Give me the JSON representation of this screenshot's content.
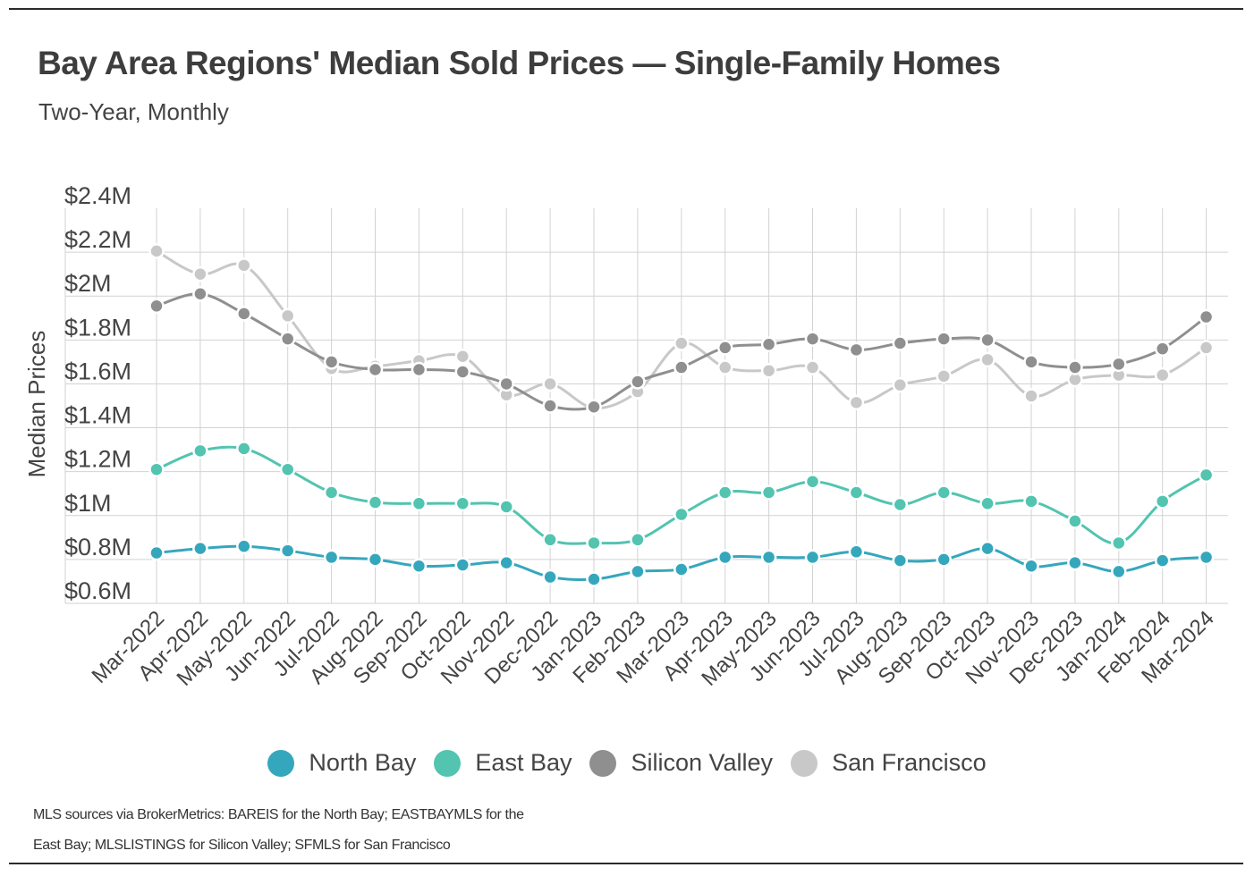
{
  "title": "Bay Area Regions' Median Sold Prices — Single-Family Homes",
  "subtitle": "Two-Year, Monthly",
  "source_note": "MLS sources via BrokerMetrics: BAREIS for the North Bay; EASTBAYMLS for the East Bay; MLSLISTINGS for Silicon Valley; SFMLS for San Francisco",
  "chart_data": {
    "type": "line",
    "title": "Bay Area Regions' Median Sold Prices — Single-Family Homes",
    "subtitle": "Two-Year, Monthly",
    "xlabel": "",
    "ylabel": "Median Prices",
    "ylim": [
      600000,
      2400000
    ],
    "y_ticks": [
      {
        "value": 600000,
        "label": "$0.6M"
      },
      {
        "value": 800000,
        "label": "$0.8M"
      },
      {
        "value": 1000000,
        "label": "$1M"
      },
      {
        "value": 1200000,
        "label": "$1.2M"
      },
      {
        "value": 1400000,
        "label": "$1.4M"
      },
      {
        "value": 1600000,
        "label": "$1.6M"
      },
      {
        "value": 1800000,
        "label": "$1.8M"
      },
      {
        "value": 2000000,
        "label": "$2M"
      },
      {
        "value": 2200000,
        "label": "$2.2M"
      },
      {
        "value": 2400000,
        "label": "$2.4M"
      }
    ],
    "grid": true,
    "legend_position": "bottom-center",
    "categories": [
      "Mar-2022",
      "Apr-2022",
      "May-2022",
      "Jun-2022",
      "Jul-2022",
      "Aug-2022",
      "Sep-2022",
      "Oct-2022",
      "Nov-2022",
      "Dec-2022",
      "Jan-2023",
      "Feb-2023",
      "Mar-2023",
      "Apr-2023",
      "May-2023",
      "Jun-2023",
      "Jul-2023",
      "Aug-2023",
      "Sep-2023",
      "Oct-2023",
      "Nov-2023",
      "Dec-2023",
      "Jan-2024",
      "Feb-2024",
      "Mar-2024"
    ],
    "series": [
      {
        "name": "North Bay",
        "color": "#35a7bd",
        "values": [
          830000,
          850000,
          860000,
          840000,
          810000,
          800000,
          770000,
          775000,
          785000,
          720000,
          710000,
          745000,
          755000,
          810000,
          810000,
          810000,
          835000,
          795000,
          800000,
          850000,
          770000,
          785000,
          745000,
          795000,
          810000
        ]
      },
      {
        "name": "East Bay",
        "color": "#52c4b0",
        "values": [
          1210000,
          1295000,
          1305000,
          1210000,
          1105000,
          1060000,
          1055000,
          1055000,
          1040000,
          890000,
          875000,
          890000,
          1005000,
          1105000,
          1105000,
          1155000,
          1105000,
          1050000,
          1105000,
          1055000,
          1065000,
          975000,
          875000,
          1065000,
          1185000
        ]
      },
      {
        "name": "Silicon Valley",
        "color": "#8f8f8f",
        "values": [
          1955000,
          2010000,
          1920000,
          1805000,
          1700000,
          1665000,
          1665000,
          1655000,
          1600000,
          1500000,
          1495000,
          1610000,
          1675000,
          1765000,
          1780000,
          1805000,
          1755000,
          1785000,
          1805000,
          1800000,
          1700000,
          1675000,
          1690000,
          1760000,
          1905000
        ]
      },
      {
        "name": "San Francisco",
        "color": "#c8c8c8",
        "values": [
          2205000,
          2100000,
          2140000,
          1910000,
          1670000,
          1680000,
          1705000,
          1725000,
          1550000,
          1600000,
          1490000,
          1565000,
          1785000,
          1675000,
          1660000,
          1675000,
          1515000,
          1595000,
          1635000,
          1710000,
          1545000,
          1620000,
          1640000,
          1640000,
          1765000
        ]
      }
    ]
  }
}
